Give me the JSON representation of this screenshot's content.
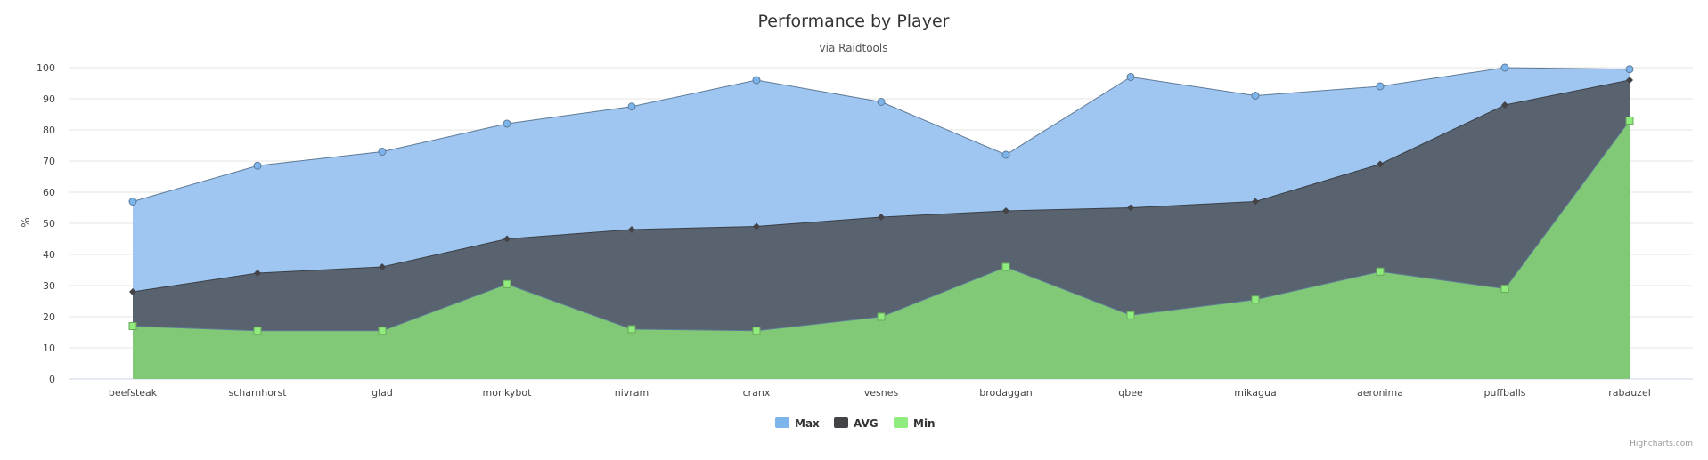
{
  "chart_data": {
    "type": "area",
    "title": "Performance by Player",
    "subtitle": "via Raidtools",
    "ylabel": "%",
    "ylim": [
      0,
      100
    ],
    "yticks": [
      0,
      10,
      20,
      30,
      40,
      50,
      60,
      70,
      80,
      90,
      100
    ],
    "grid": true,
    "legend_position": "bottom-center",
    "categories": [
      "beefsteak",
      "scharnhorst",
      "glad",
      "monkybot",
      "nivram",
      "cranx",
      "vesnes",
      "brodaggan",
      "qbee",
      "mikagua",
      "aeronima",
      "puffballs",
      "rabauzel"
    ],
    "series": [
      {
        "name": "Max",
        "color": "#7cb5ec",
        "marker": "circle",
        "values": [
          57,
          68.5,
          73,
          82,
          87.5,
          96,
          89,
          72,
          97,
          91,
          94,
          100,
          99.5
        ]
      },
      {
        "name": "AVG",
        "color": "#434348",
        "marker": "diamond",
        "values": [
          28,
          34,
          36,
          45,
          48,
          49,
          52,
          54,
          55,
          57,
          69,
          88,
          96
        ]
      },
      {
        "name": "Min",
        "color": "#90ed7d",
        "marker": "square",
        "values": [
          17,
          15.5,
          15.5,
          30.5,
          16,
          15.5,
          20,
          36,
          20.5,
          25.5,
          34.5,
          29,
          83
        ]
      }
    ]
  },
  "credits": "Highcharts.com"
}
